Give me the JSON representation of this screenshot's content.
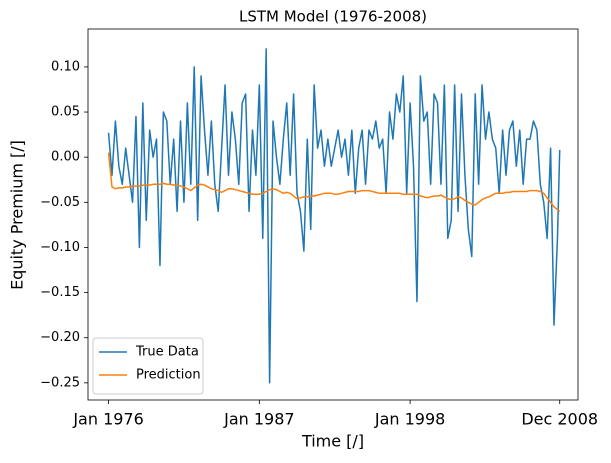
{
  "chart_data": {
    "type": "line",
    "title": "LSTM Model (1976-2008)",
    "x_label": "Time [/]",
    "y_label": "Equity Premium [/]",
    "x": [
      "1976-01",
      "1976-04",
      "1976-07",
      "1976-10",
      "1977-01",
      "1977-04",
      "1977-07",
      "1977-10",
      "1978-01",
      "1978-04",
      "1978-07",
      "1978-10",
      "1979-01",
      "1979-04",
      "1979-07",
      "1979-10",
      "1980-01",
      "1980-04",
      "1980-07",
      "1980-10",
      "1981-01",
      "1981-04",
      "1981-07",
      "1981-10",
      "1982-01",
      "1982-04",
      "1982-07",
      "1982-10",
      "1983-01",
      "1983-04",
      "1983-07",
      "1983-10",
      "1984-01",
      "1984-04",
      "1984-07",
      "1984-10",
      "1985-01",
      "1985-04",
      "1985-07",
      "1985-10",
      "1986-01",
      "1986-04",
      "1986-07",
      "1986-10",
      "1987-01",
      "1987-04",
      "1987-07",
      "1987-10",
      "1988-01",
      "1988-04",
      "1988-07",
      "1988-10",
      "1989-01",
      "1989-04",
      "1989-07",
      "1989-10",
      "1990-01",
      "1990-04",
      "1990-07",
      "1990-10",
      "1991-01",
      "1991-04",
      "1991-07",
      "1991-10",
      "1992-01",
      "1992-04",
      "1992-07",
      "1992-10",
      "1993-01",
      "1993-04",
      "1993-07",
      "1993-10",
      "1994-01",
      "1994-04",
      "1994-07",
      "1994-10",
      "1995-01",
      "1995-04",
      "1995-07",
      "1995-10",
      "1996-01",
      "1996-04",
      "1996-07",
      "1996-10",
      "1997-01",
      "1997-04",
      "1997-07",
      "1997-10",
      "1998-01",
      "1998-04",
      "1998-07",
      "1998-10",
      "1999-01",
      "1999-04",
      "1999-07",
      "1999-10",
      "2000-01",
      "2000-04",
      "2000-07",
      "2000-10",
      "2001-01",
      "2001-04",
      "2001-07",
      "2001-10",
      "2002-01",
      "2002-04",
      "2002-07",
      "2002-10",
      "2003-01",
      "2003-04",
      "2003-07",
      "2003-10",
      "2004-01",
      "2004-04",
      "2004-07",
      "2004-10",
      "2005-01",
      "2005-04",
      "2005-07",
      "2005-10",
      "2006-01",
      "2006-04",
      "2006-07",
      "2006-10",
      "2007-01",
      "2007-04",
      "2007-07",
      "2007-10",
      "2008-01",
      "2008-04",
      "2008-07",
      "2008-10",
      "2008-12"
    ],
    "series": [
      {
        "name": "True Data",
        "color": "#1f77b4",
        "values": [
          0.027,
          -0.02,
          0.04,
          -0.01,
          -0.03,
          0.01,
          -0.02,
          -0.05,
          0.045,
          -0.1,
          0.06,
          -0.07,
          0.03,
          0.0,
          0.02,
          -0.12,
          0.05,
          0.04,
          -0.03,
          0.02,
          -0.06,
          0.04,
          -0.05,
          0.06,
          -0.03,
          0.1,
          -0.07,
          0.09,
          0.03,
          -0.02,
          0.04,
          -0.03,
          -0.06,
          0.01,
          0.08,
          -0.02,
          0.05,
          0.02,
          -0.03,
          0.06,
          0.07,
          -0.06,
          0.03,
          -0.02,
          0.08,
          -0.09,
          0.12,
          -0.25,
          0.04,
          0.0,
          -0.03,
          0.02,
          0.06,
          -0.02,
          0.07,
          -0.04,
          -0.06,
          -0.104,
          0.02,
          -0.08,
          0.08,
          0.01,
          0.03,
          -0.01,
          0.02,
          -0.01,
          0.01,
          0.03,
          0.0,
          0.02,
          -0.02,
          0.03,
          -0.04,
          0.01,
          0.03,
          -0.03,
          0.03,
          0.02,
          0.04,
          0.01,
          0.02,
          -0.04,
          0.05,
          0.02,
          0.07,
          0.05,
          0.09,
          -0.04,
          0.06,
          -0.01,
          -0.16,
          0.09,
          0.04,
          0.05,
          -0.03,
          0.07,
          0.06,
          -0.03,
          0.08,
          -0.09,
          -0.07,
          0.08,
          -0.06,
          0.07,
          -0.02,
          -0.08,
          -0.11,
          0.07,
          -0.03,
          0.08,
          0.02,
          0.05,
          0.02,
          0.01,
          -0.04,
          0.03,
          -0.02,
          0.03,
          0.04,
          -0.01,
          0.03,
          -0.03,
          0.02,
          0.02,
          0.04,
          0.03,
          -0.03,
          -0.05,
          -0.09,
          0.01,
          -0.186,
          -0.09,
          0.008
        ]
      },
      {
        "name": "Prediction",
        "color": "#ff7f0e",
        "values": [
          0.005,
          -0.033,
          -0.035,
          -0.034,
          -0.034,
          -0.033,
          -0.033,
          -0.032,
          -0.032,
          -0.032,
          -0.031,
          -0.031,
          -0.031,
          -0.03,
          -0.03,
          -0.03,
          -0.029,
          -0.03,
          -0.03,
          -0.031,
          -0.031,
          -0.032,
          -0.033,
          -0.035,
          -0.037,
          -0.034,
          -0.031,
          -0.03,
          -0.031,
          -0.033,
          -0.035,
          -0.036,
          -0.037,
          -0.039,
          -0.037,
          -0.035,
          -0.035,
          -0.036,
          -0.037,
          -0.038,
          -0.039,
          -0.04,
          -0.041,
          -0.041,
          -0.041,
          -0.04,
          -0.038,
          -0.036,
          -0.035,
          -0.036,
          -0.038,
          -0.04,
          -0.039,
          -0.04,
          -0.043,
          -0.046,
          -0.045,
          -0.044,
          -0.044,
          -0.043,
          -0.043,
          -0.042,
          -0.041,
          -0.04,
          -0.04,
          -0.04,
          -0.041,
          -0.041,
          -0.04,
          -0.039,
          -0.038,
          -0.038,
          -0.038,
          -0.038,
          -0.037,
          -0.037,
          -0.037,
          -0.038,
          -0.039,
          -0.04,
          -0.04,
          -0.04,
          -0.04,
          -0.04,
          -0.04,
          -0.04,
          -0.041,
          -0.041,
          -0.041,
          -0.041,
          -0.041,
          -0.043,
          -0.044,
          -0.045,
          -0.044,
          -0.043,
          -0.043,
          -0.042,
          -0.044,
          -0.046,
          -0.047,
          -0.046,
          -0.044,
          -0.045,
          -0.048,
          -0.05,
          -0.052,
          -0.053,
          -0.05,
          -0.047,
          -0.045,
          -0.044,
          -0.042,
          -0.04,
          -0.04,
          -0.04,
          -0.039,
          -0.039,
          -0.038,
          -0.038,
          -0.038,
          -0.038,
          -0.038,
          -0.037,
          -0.037,
          -0.037,
          -0.038,
          -0.04,
          -0.045,
          -0.05,
          -0.055,
          -0.058,
          -0.06
        ]
      }
    ],
    "xlim": [
      "1974-07",
      "2010-04"
    ],
    "xticks": [
      {
        "value": "1976-01",
        "label": "Jan 1976"
      },
      {
        "value": "1987-01",
        "label": "Jan 1987"
      },
      {
        "value": "1998-01",
        "label": "Jan 1998"
      },
      {
        "value": "2008-12",
        "label": "Dec 2008"
      }
    ],
    "ylim": [
      -0.269,
      0.142
    ],
    "yticks": [
      {
        "value": 0.1,
        "label": "0.10"
      },
      {
        "value": 0.05,
        "label": "0.05"
      },
      {
        "value": 0,
        "label": "0.00"
      },
      {
        "value": -0.05,
        "label": "−0.05"
      },
      {
        "value": -0.1,
        "label": "−0.10"
      },
      {
        "value": -0.15,
        "label": "−0.15"
      },
      {
        "value": -0.2,
        "label": "−0.20"
      },
      {
        "value": -0.25,
        "label": "−0.25"
      }
    ],
    "grid": false,
    "legend": "lower left"
  }
}
